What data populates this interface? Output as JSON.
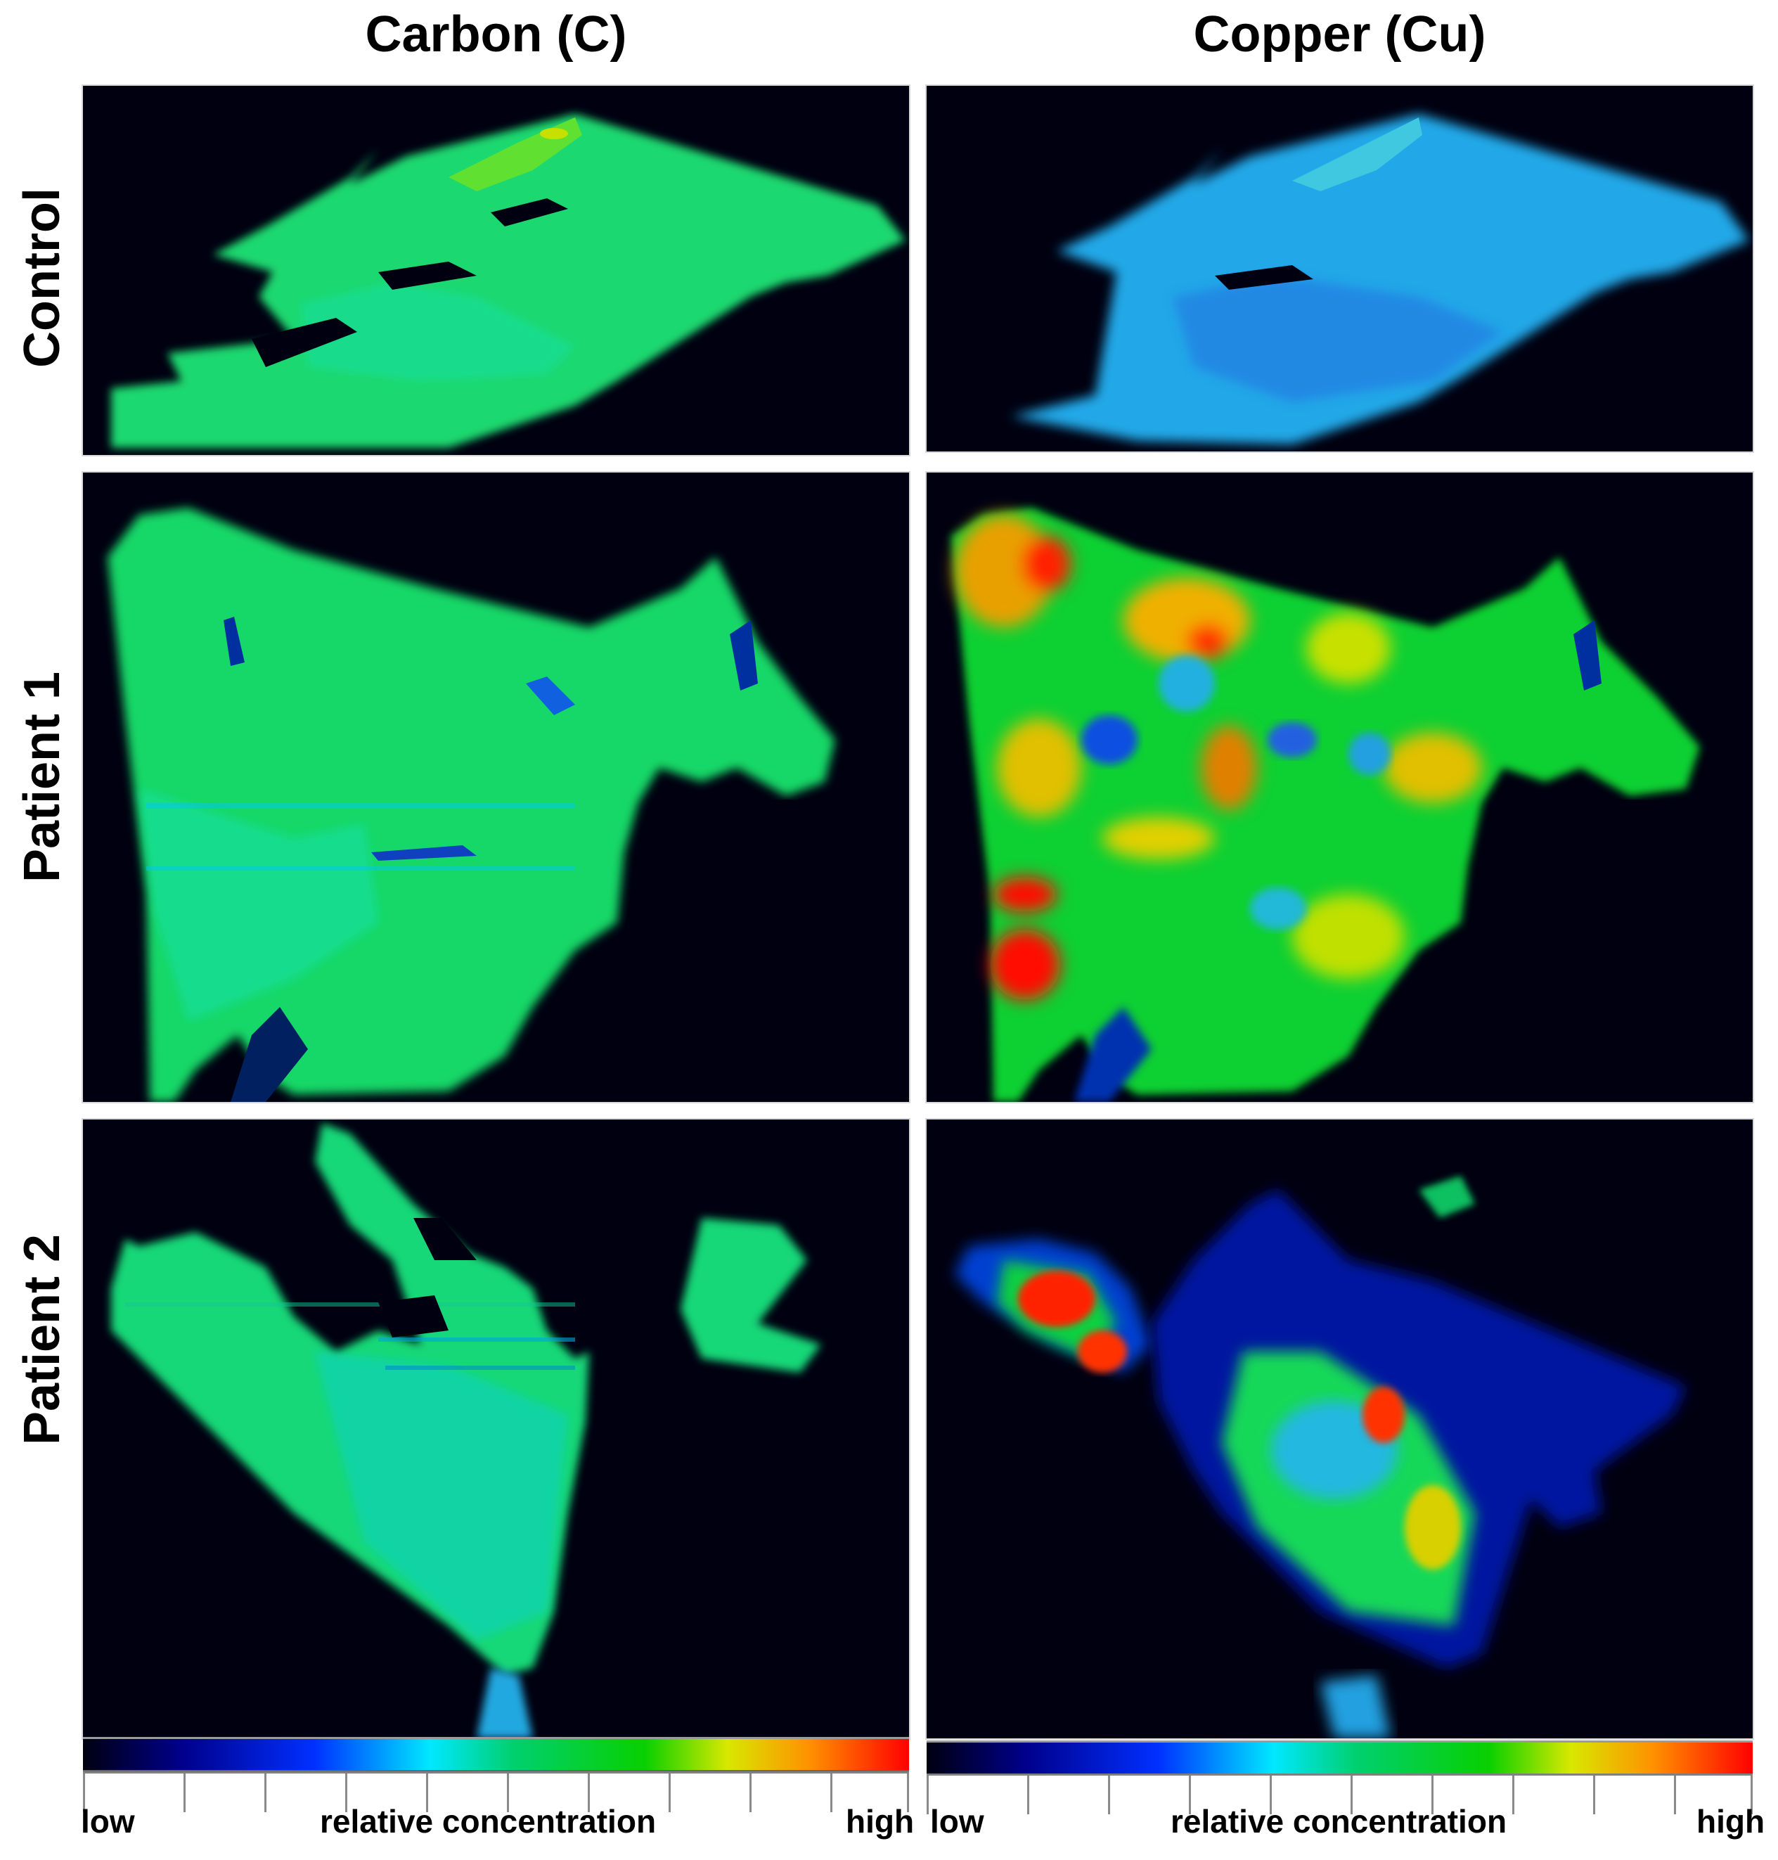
{
  "columns": [
    {
      "title": "Carbon (C)"
    },
    {
      "title": "Copper (Cu)"
    }
  ],
  "rows": [
    {
      "label": "Control"
    },
    {
      "label": "Patient 1"
    },
    {
      "label": "Patient 2"
    }
  ],
  "colorbar": {
    "low_label": "low",
    "middle_label": "relative concentration",
    "high_label": "high",
    "colormap": [
      "#000010",
      "#00008c",
      "#0030ff",
      "#00e8ff",
      "#00d070",
      "#08d000",
      "#d8e800",
      "#ff9000",
      "#ff0000"
    ]
  }
}
